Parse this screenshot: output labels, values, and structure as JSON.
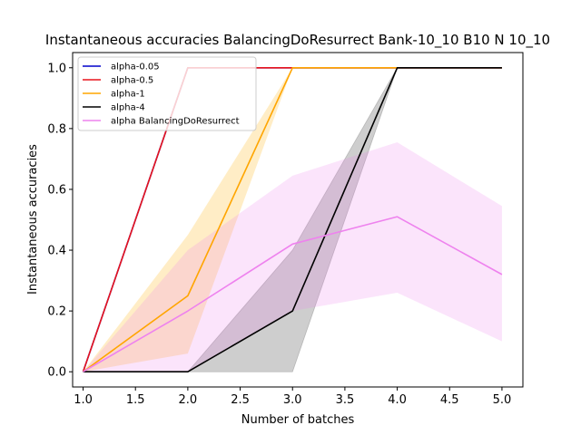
{
  "chart_data": {
    "type": "line",
    "title": "Instantaneous accuracies BalancingDoResurrect Bank-10_10 B10 N 10_10",
    "xlabel": "Number of batches",
    "ylabel": "Instantaneous accuracies",
    "xlim": [
      0.9,
      5.2
    ],
    "ylim": [
      -0.05,
      1.05
    ],
    "xticks": [
      "1.0",
      "1.5",
      "2.0",
      "2.5",
      "3.0",
      "3.5",
      "4.0",
      "4.5",
      "5.0"
    ],
    "yticks": [
      "0.0",
      "0.2",
      "0.4",
      "0.6",
      "0.8",
      "1.0"
    ],
    "grid": false,
    "legend_position": "top-left",
    "x": [
      1,
      2,
      3,
      4,
      5
    ],
    "series": [
      {
        "name": "alpha-0.05",
        "color": "#0000cc",
        "values": [
          0.0,
          1.0,
          1.0,
          1.0,
          1.0
        ]
      },
      {
        "name": "alpha-0.5",
        "color": "#e8141c",
        "values": [
          0.0,
          1.0,
          1.0,
          1.0,
          1.0
        ]
      },
      {
        "name": "alpha-1",
        "color": "#ffa500",
        "values": [
          0.0,
          0.25,
          1.0,
          1.0,
          1.0
        ],
        "band_lower": [
          0.0,
          0.06,
          1.0,
          1.0,
          1.0
        ],
        "band_upper": [
          0.0,
          0.45,
          1.0,
          1.0,
          1.0
        ],
        "band_color": "#ffe8b8"
      },
      {
        "name": "alpha-4",
        "color": "#000000",
        "values": [
          0.0,
          0.0,
          0.2,
          1.0,
          1.0
        ],
        "band_lower": [
          0.0,
          0.0,
          0.0,
          1.0,
          1.0
        ],
        "band_upper": [
          0.0,
          0.0,
          0.4,
          1.0,
          1.0
        ],
        "band_color": "#8a8a8a"
      },
      {
        "name": "alpha BalancingDoResurrect",
        "color": "#ee82ee",
        "values": [
          0.0,
          0.2,
          0.42,
          0.51,
          0.32
        ],
        "band_lower": [
          0.0,
          0.0,
          0.2,
          0.26,
          0.1
        ],
        "band_upper": [
          0.0,
          0.4,
          0.645,
          0.755,
          0.545
        ],
        "band_color": "#ee82ee"
      }
    ]
  }
}
